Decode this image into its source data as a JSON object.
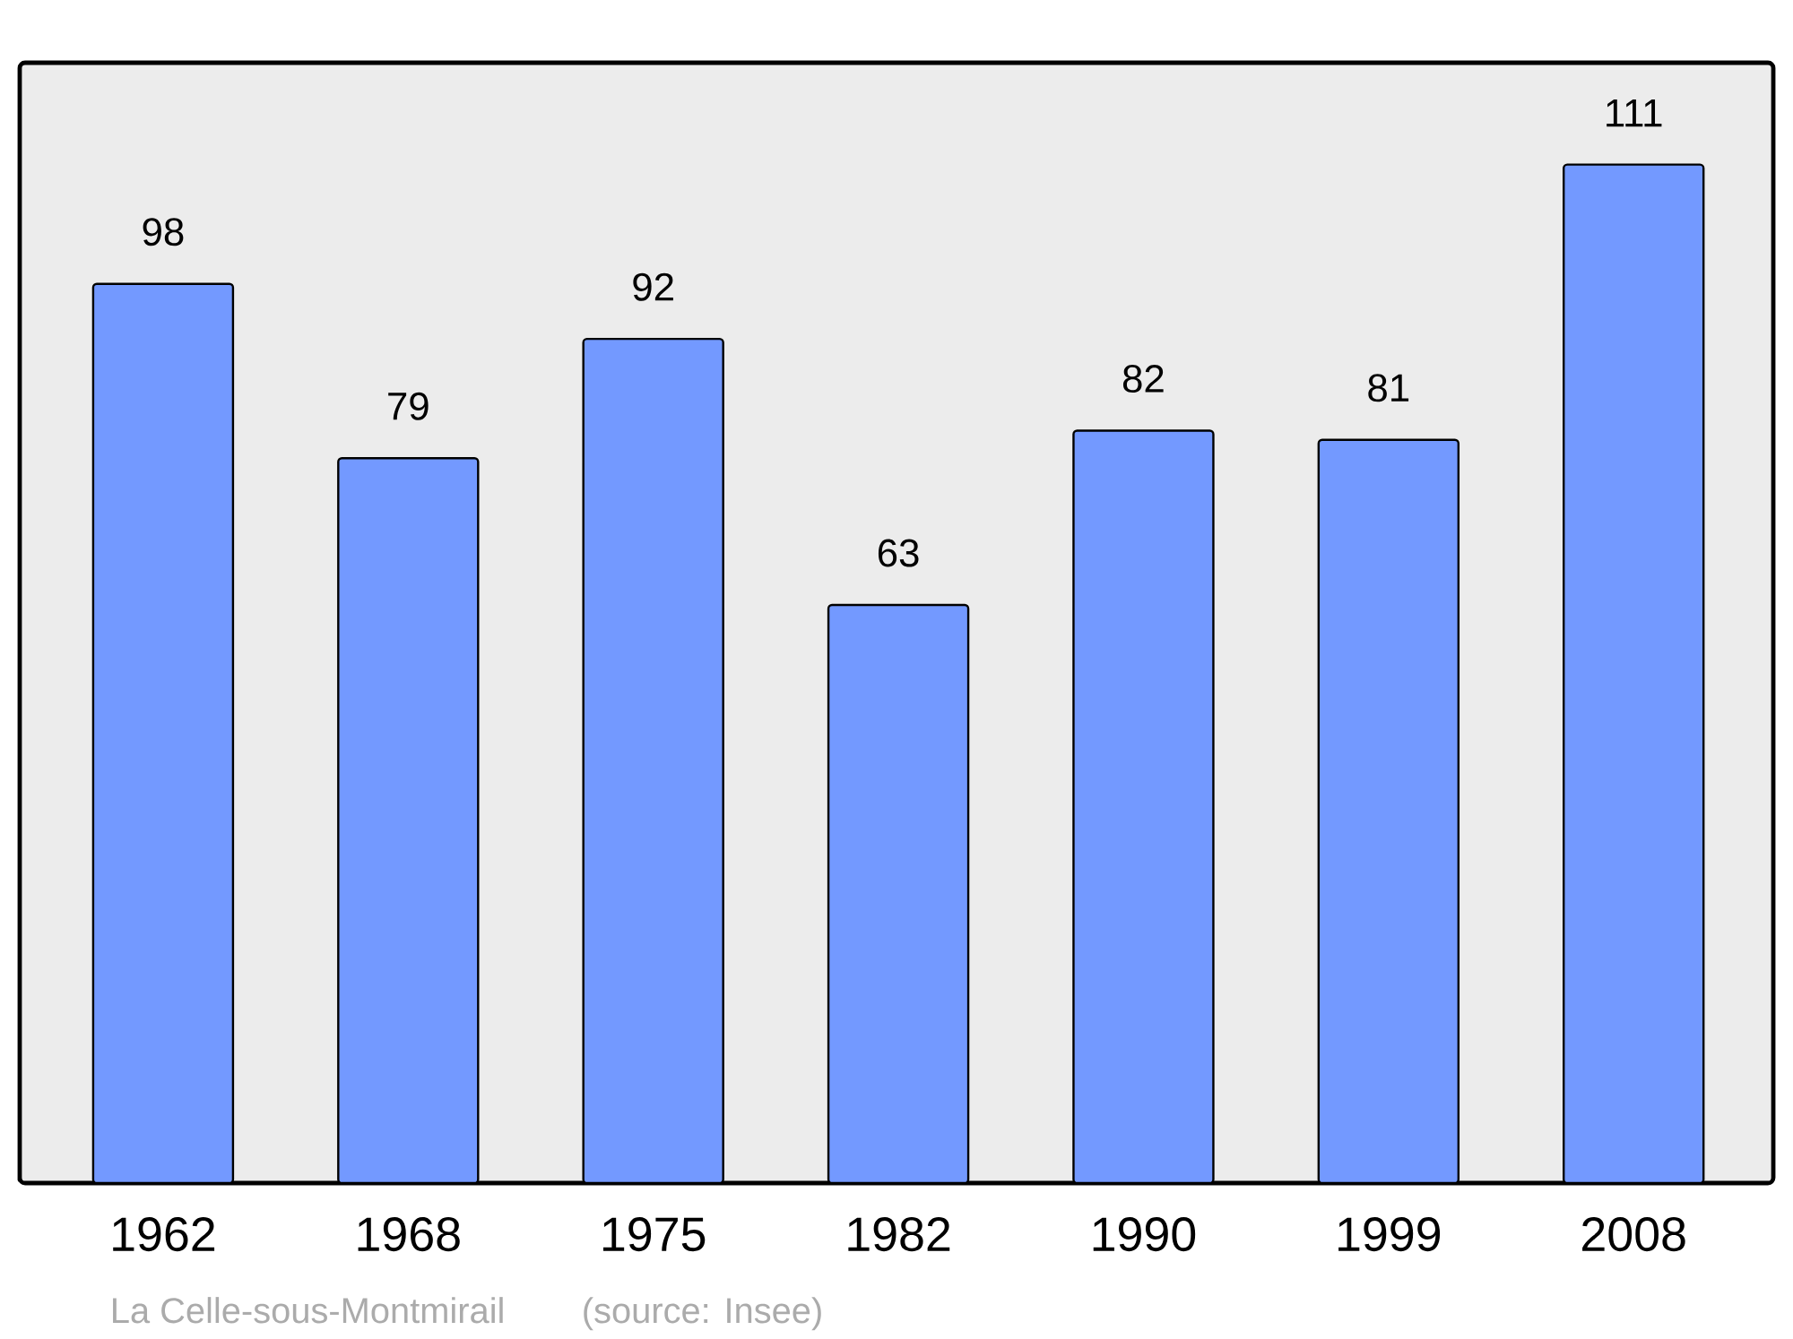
{
  "chart_data": {
    "type": "bar",
    "categories": [
      "1962",
      "1968",
      "1975",
      "1982",
      "1990",
      "1999",
      "2008"
    ],
    "values": [
      98,
      79,
      92,
      63,
      82,
      81,
      111
    ],
    "color": "#7399ff",
    "data_labels": true,
    "annotations": [
      "La Celle-sous-Montmirail",
      "(source: Insee)"
    ]
  }
}
